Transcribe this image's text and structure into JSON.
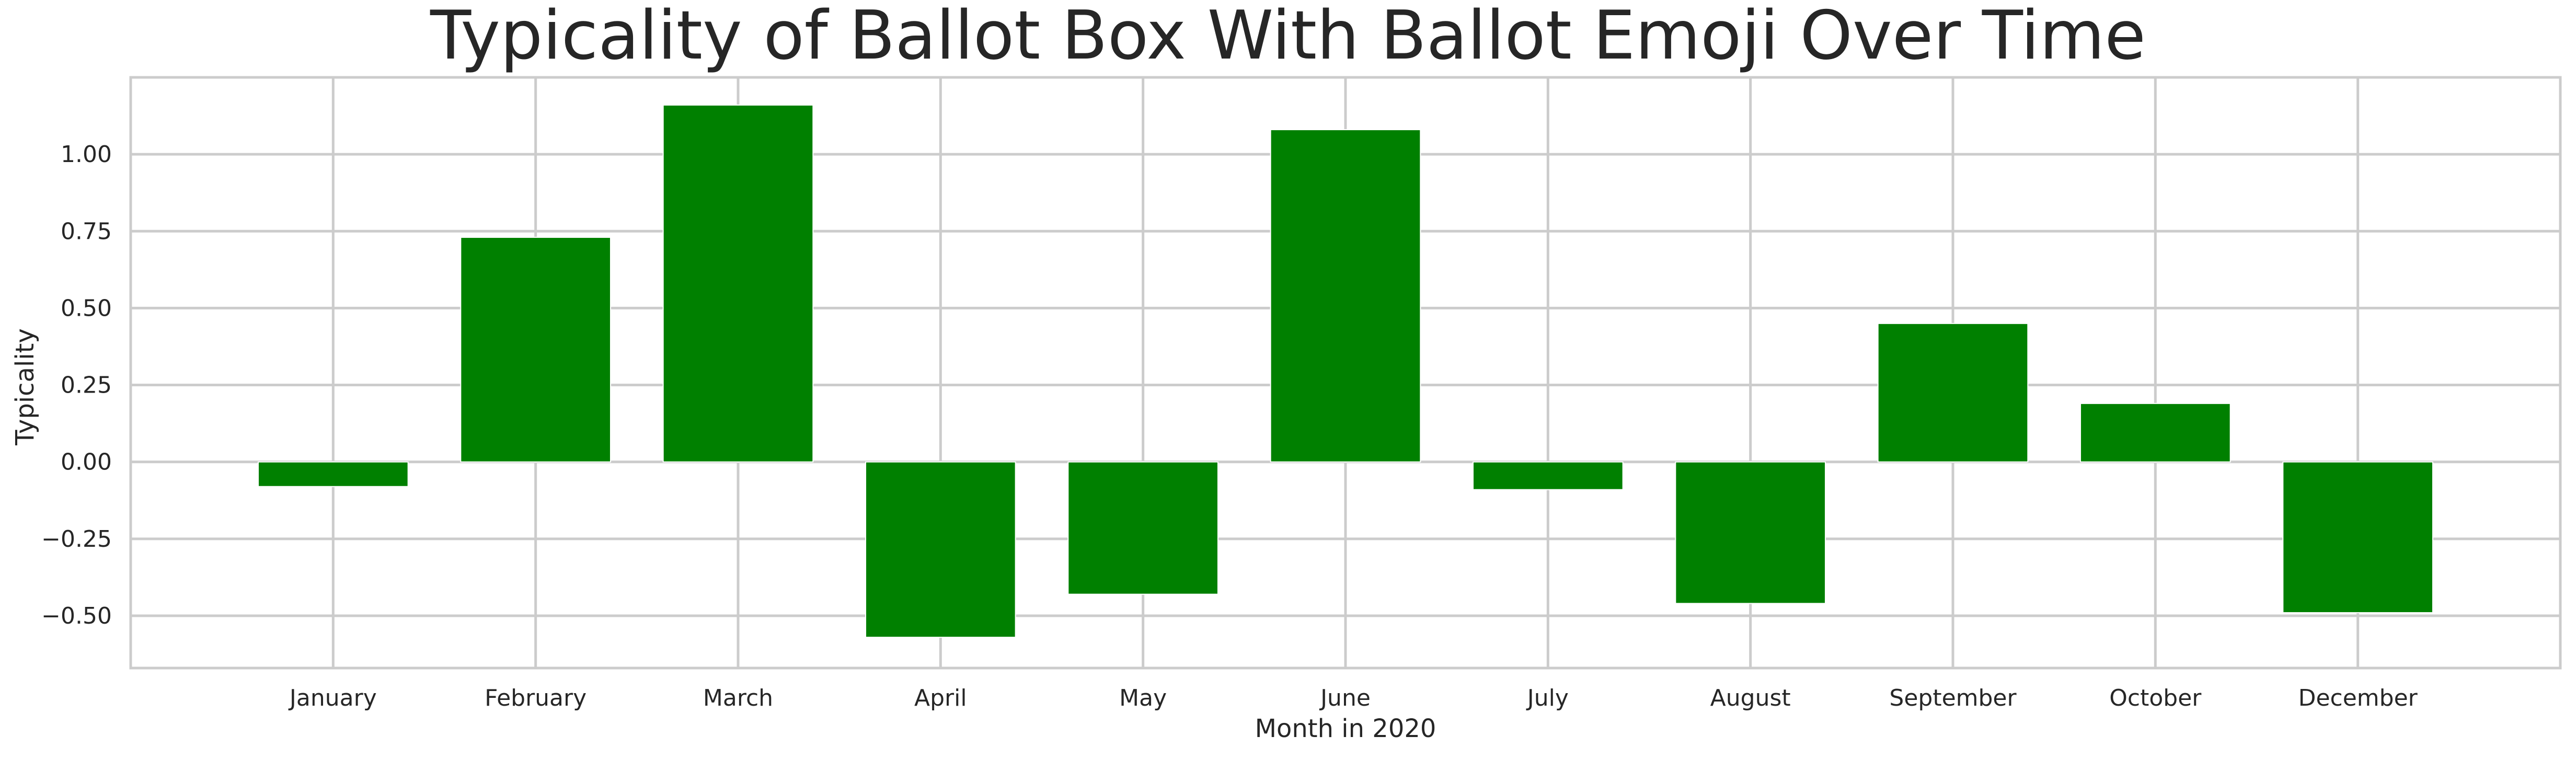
{
  "chart_data": {
    "type": "bar",
    "title": "Typicality of Ballot Box With Ballot Emoji Over Time",
    "xlabel": "Month in 2020",
    "ylabel": "Typicality",
    "categories": [
      "January",
      "February",
      "March",
      "April",
      "May",
      "June",
      "July",
      "August",
      "September",
      "October",
      "December"
    ],
    "values": [
      -0.08,
      0.73,
      1.16,
      -0.57,
      -0.43,
      1.08,
      -0.09,
      -0.46,
      0.45,
      0.19,
      -0.49
    ],
    "ylim": [
      -0.67,
      1.25
    ],
    "yticks": [
      -0.5,
      -0.25,
      0.0,
      0.25,
      0.5,
      0.75,
      1.0
    ],
    "ytick_labels": [
      "−0.50",
      "−0.25",
      "0.00",
      "0.25",
      "0.50",
      "0.75",
      "1.00"
    ],
    "bar_color": "#008000",
    "grid": true,
    "legend": "none"
  }
}
